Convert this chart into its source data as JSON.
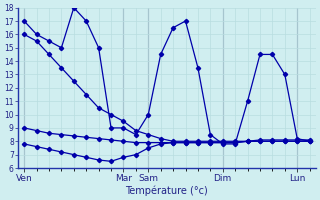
{
  "xlabel": "Température (°c)",
  "background_color": "#d0eef0",
  "grid_color": "#b8dde0",
  "line_color": "#0000aa",
  "ylim": [
    6,
    18
  ],
  "yticks": [
    6,
    7,
    8,
    9,
    10,
    11,
    12,
    13,
    14,
    15,
    16,
    17,
    18
  ],
  "day_labels": [
    "Ven",
    "Mar",
    "Sam",
    "Dim",
    "Lun"
  ],
  "day_x_positions": [
    0,
    8,
    10,
    16,
    22
  ],
  "num_points": 24,
  "lines": [
    {
      "x": [
        0,
        1,
        2,
        3,
        4,
        5,
        6,
        7,
        8,
        9,
        10,
        11,
        12,
        13,
        14,
        15,
        16,
        17,
        18,
        19,
        20,
        21,
        22,
        23
      ],
      "y": [
        17.0,
        16.0,
        15.5,
        15.0,
        18.0,
        17.0,
        15.0,
        9.0,
        9.0,
        8.5,
        10.0,
        14.5,
        16.5,
        17.0,
        13.5,
        8.5,
        7.8,
        7.8,
        11.0,
        14.5,
        14.5,
        13.0,
        8.2,
        8.0
      ]
    },
    {
      "x": [
        0,
        1,
        2,
        3,
        4,
        5,
        6,
        7,
        8,
        9,
        10,
        11,
        12,
        13,
        14,
        15,
        16,
        17,
        18,
        19,
        20,
        21,
        22,
        23
      ],
      "y": [
        16.0,
        15.5,
        14.5,
        13.5,
        12.5,
        11.5,
        10.5,
        10.0,
        9.5,
        8.8,
        8.5,
        8.2,
        8.0,
        8.0,
        8.0,
        8.0,
        8.0,
        8.0,
        8.0,
        8.1,
        8.1,
        8.1,
        8.1,
        8.1
      ]
    },
    {
      "x": [
        0,
        1,
        2,
        3,
        4,
        5,
        6,
        7,
        8,
        9,
        10,
        11,
        12,
        13,
        14,
        15,
        16,
        17,
        18,
        19,
        20,
        21,
        22,
        23
      ],
      "y": [
        9.0,
        8.8,
        8.6,
        8.5,
        8.4,
        8.3,
        8.2,
        8.1,
        8.0,
        7.9,
        7.9,
        7.9,
        7.9,
        7.9,
        7.9,
        7.9,
        7.9,
        7.9,
        8.0,
        8.0,
        8.0,
        8.0,
        8.0,
        8.0
      ]
    },
    {
      "x": [
        0,
        1,
        2,
        3,
        4,
        5,
        6,
        7,
        8,
        9,
        10,
        11,
        12,
        13,
        14,
        15,
        16,
        17,
        18,
        19,
        20,
        21,
        22,
        23
      ],
      "y": [
        7.8,
        7.6,
        7.4,
        7.2,
        7.0,
        6.8,
        6.6,
        6.5,
        6.8,
        7.0,
        7.5,
        7.8,
        7.9,
        7.9,
        7.9,
        7.9,
        7.9,
        7.9,
        8.0,
        8.0,
        8.0,
        8.0,
        8.0,
        8.0
      ]
    }
  ]
}
